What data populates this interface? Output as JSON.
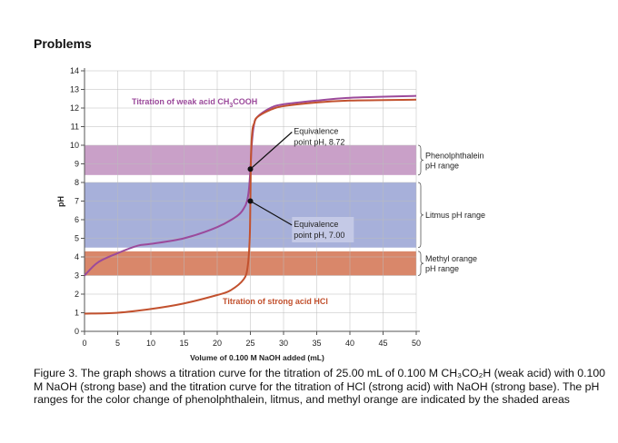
{
  "page": {
    "heading": "Problems",
    "caption": "Figure 3. The graph shows a titration curve for the titration of 25.00 mL of 0.100 M CH₃CO₂H (weak acid) with 0.100 M NaOH (strong base) and the titration curve for the titration of HCl (strong acid) with NaOH (strong base). The pH ranges for the color change of phenolphthalein, litmus, and methyl orange are indicated by the shaded areas"
  },
  "chart_data": {
    "type": "line",
    "xlabel": "Volume of 0.100 M NaOH added (mL)",
    "ylabel": "pH",
    "xlim": [
      0,
      50
    ],
    "ylim": [
      0,
      14
    ],
    "xticks": [
      0,
      5,
      10,
      15,
      20,
      25,
      30,
      35,
      40,
      45,
      50
    ],
    "yticks": [
      0,
      1,
      2,
      3,
      4,
      5,
      6,
      7,
      8,
      9,
      10,
      11,
      12,
      13,
      14
    ],
    "grid": true,
    "bands": [
      {
        "name": "Phenolphthalein pH range",
        "label1": "Phenolphthalein",
        "label2": "pH range",
        "range": [
          8.4,
          10
        ],
        "color": "#c9a0c8"
      },
      {
        "name": "Litmus pH range",
        "label1": "Litmus pH range",
        "label2": "",
        "range": [
          4.5,
          8
        ],
        "color": "#a7b0da"
      },
      {
        "name": "Methyl orange pH range",
        "label1": "Methyl orange",
        "label2": "pH range",
        "range": [
          3,
          4.3
        ],
        "color": "#d9876a"
      }
    ],
    "series": [
      {
        "name": "Titration of weak acid CH3COOH",
        "label_main": "Titration of weak acid CH",
        "label_sub": "3",
        "label_end": "COOH",
        "color": "#9b4a9b",
        "x": [
          0,
          2,
          5,
          8,
          10,
          15,
          20,
          23,
          24,
          24.5,
          24.8,
          25,
          25.2,
          25.5,
          26,
          28,
          30,
          35,
          40,
          50
        ],
        "y": [
          3,
          3.7,
          4.2,
          4.6,
          4.7,
          5.0,
          5.6,
          6.2,
          6.6,
          7.0,
          7.7,
          8.72,
          10,
          11,
          11.5,
          12,
          12.2,
          12.4,
          12.55,
          12.65
        ]
      },
      {
        "name": "Titration of strong acid HCl",
        "label_main": "Titration of strong acid HCl",
        "color": "#c2512e",
        "x": [
          0,
          5,
          10,
          15,
          20,
          22,
          24,
          24.6,
          24.9,
          25,
          25.1,
          25.3,
          25.6,
          26,
          28,
          30,
          35,
          40,
          50
        ],
        "y": [
          0.95,
          1.0,
          1.2,
          1.5,
          1.95,
          2.2,
          2.8,
          3.5,
          5,
          7,
          9.5,
          10.8,
          11.2,
          11.5,
          11.9,
          12.1,
          12.3,
          12.4,
          12.45
        ]
      }
    ],
    "annotations": [
      {
        "line1": "Equivalence",
        "line2": "point pH, 8.72",
        "x": 25,
        "y": 8.72,
        "tx": 31,
        "ty": 11
      },
      {
        "line1": "Equivalence",
        "line2": "point pH, 7.00",
        "x": 25,
        "y": 7.0,
        "tx": 31,
        "ty": 6
      }
    ]
  }
}
